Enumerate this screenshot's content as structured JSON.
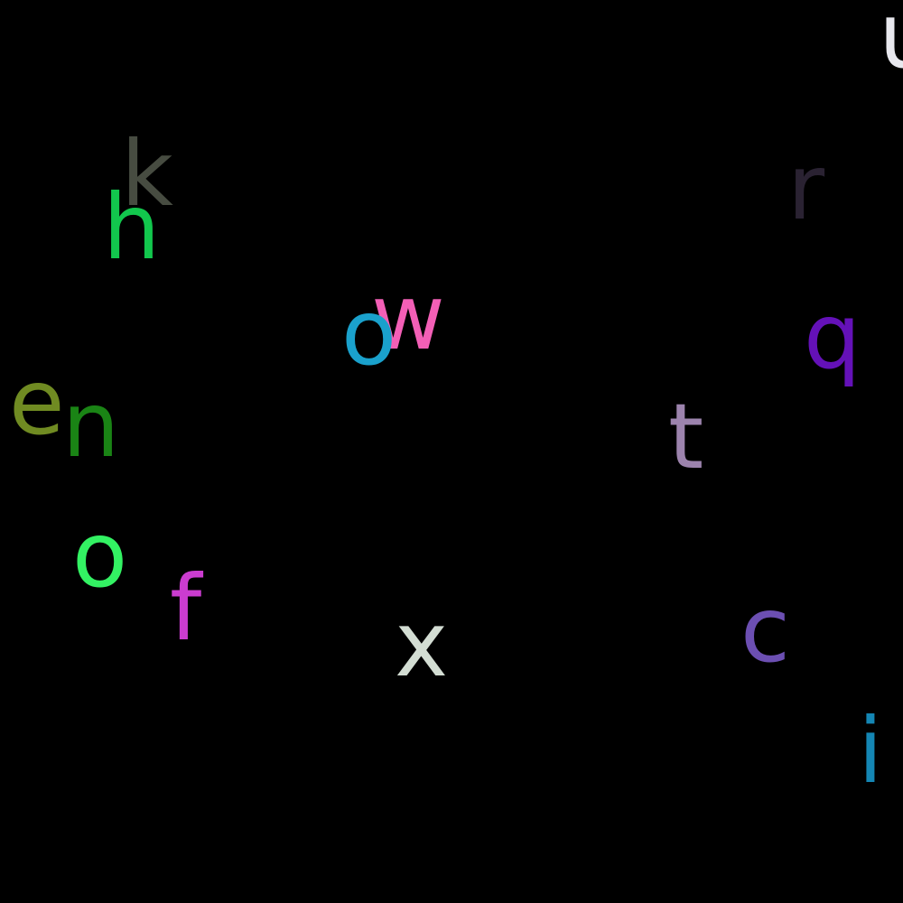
{
  "letters": [
    {
      "char": "u",
      "color": "#e8e8ee"
    },
    {
      "char": "k",
      "color": "#474c41"
    },
    {
      "char": "h",
      "color": "#12c74d"
    },
    {
      "char": "r",
      "color": "#2a2232"
    },
    {
      "char": "w",
      "color": "#f35fb6"
    },
    {
      "char": "o",
      "color": "#1aa1cc"
    },
    {
      "char": "q",
      "color": "#6411b8"
    },
    {
      "char": "e",
      "color": "#708b22"
    },
    {
      "char": "n",
      "color": "#1a8415"
    },
    {
      "char": "t",
      "color": "#9c83ad"
    },
    {
      "char": "o",
      "color": "#33f263"
    },
    {
      "char": "f",
      "color": "#cb3cd0"
    },
    {
      "char": "x",
      "color": "#d3ddd3"
    },
    {
      "char": "c",
      "color": "#6c4fb2"
    },
    {
      "char": "i",
      "color": "#1486b4"
    }
  ]
}
